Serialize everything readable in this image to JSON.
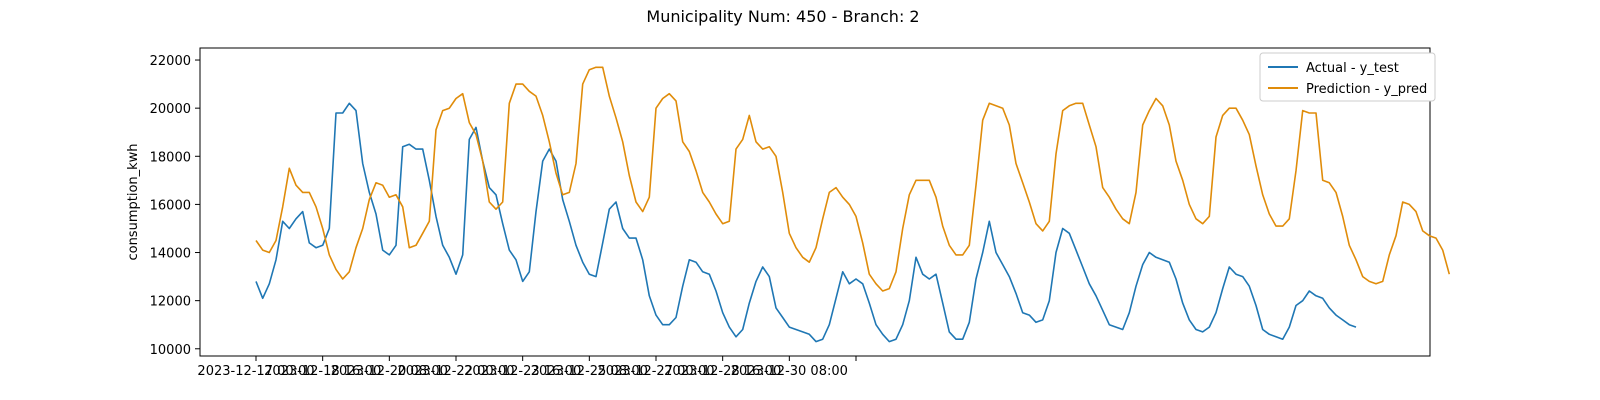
{
  "chart_data": {
    "type": "line",
    "title": "Municipality Num: 450 - Branch: 2",
    "xlabel": "",
    "ylabel": "consumption_kwh",
    "ylim": [
      9700,
      22500
    ],
    "grid": false,
    "legend_position": "top-right",
    "x_start": "2023-12-17 00:00",
    "x_step_hours": 4,
    "x_ticks": [
      "2023-12-17 00:00",
      "2023-12-18 16:00",
      "2023-12-20 08:00",
      "2023-12-22 00:00",
      "2023-12-23 16:00",
      "2023-12-25 08:00",
      "2023-12-27 00:00",
      "2023-12-28 16:00",
      "2023-12-30 08:00",
      ""
    ],
    "y_ticks": [
      10000,
      12000,
      14000,
      16000,
      18000,
      20000,
      22000
    ],
    "series": [
      {
        "name": "Actual - y_test",
        "color": "#1f77b4",
        "values": [
          12800,
          12100,
          12700,
          13700,
          15300,
          15000,
          15400,
          15700,
          14400,
          14200,
          14300,
          15000,
          19800,
          19800,
          20200,
          19900,
          17700,
          16500,
          15600,
          14100,
          13900,
          14300,
          18400,
          18500,
          18300,
          18300,
          17000,
          15500,
          14300,
          13800,
          13100,
          13900,
          18700,
          19200,
          17800,
          16700,
          16400,
          15200,
          14100,
          13700,
          12800,
          13200,
          15700,
          17800,
          18300,
          17800,
          16200,
          15300,
          14300,
          13600,
          13100,
          13000,
          14400,
          15800,
          16100,
          15000,
          14600,
          14600,
          13700,
          12200,
          11400,
          11000,
          11000,
          11300,
          12600,
          13700,
          13600,
          13200,
          13100,
          12400,
          11500,
          10900,
          10500,
          10800,
          11900,
          12800,
          13400,
          13000,
          11700,
          11300,
          10900,
          10800,
          10700,
          10600,
          10300,
          10400,
          11000,
          12100,
          13200,
          12700,
          12900,
          12700,
          11900,
          11000,
          10600,
          10300,
          10400,
          11000,
          12000,
          13800,
          13100,
          12900,
          13100,
          11900,
          10700,
          10400,
          10400,
          11100,
          12900,
          14000,
          15300,
          14000,
          13500,
          13000,
          12300,
          11500,
          11400,
          11100,
          11200,
          12000,
          14000,
          15000,
          14800,
          14100,
          13400,
          12700,
          12200,
          11600,
          11000,
          10900,
          10800,
          11500,
          12600,
          13500,
          14000,
          13800,
          13700,
          13600,
          12900,
          11900,
          11200,
          10800,
          10700,
          10900,
          11500,
          12500,
          13400,
          13100,
          13000,
          12600,
          11800,
          10800,
          10600,
          10500,
          10400,
          10900,
          11800,
          12000,
          12400,
          12200,
          12100,
          11700,
          11400,
          11200,
          11000,
          10900
        ]
      },
      {
        "name": "Prediction - y_pred",
        "color": "#e08c0a",
        "values": [
          14500,
          14100,
          14000,
          14500,
          15900,
          17500,
          16800,
          16500,
          16500,
          15900,
          15000,
          13900,
          13300,
          12900,
          13200,
          14200,
          15000,
          16200,
          16900,
          16800,
          16300,
          16400,
          15900,
          14200,
          14300,
          14800,
          15300,
          19100,
          19900,
          20000,
          20400,
          20600,
          19400,
          18900,
          17800,
          16100,
          15800,
          16100,
          20200,
          21000,
          21000,
          20700,
          20500,
          19700,
          18600,
          17300,
          16400,
          16500,
          17700,
          21000,
          21600,
          21700,
          21700,
          20500,
          19600,
          18600,
          17200,
          16100,
          15700,
          16300,
          20000,
          20400,
          20600,
          20300,
          18600,
          18200,
          17400,
          16500,
          16100,
          15600,
          15200,
          15300,
          18300,
          18700,
          19700,
          18600,
          18300,
          18400,
          18000,
          16500,
          14800,
          14200,
          13800,
          13600,
          14200,
          15400,
          16500,
          16700,
          16300,
          16000,
          15500,
          14400,
          13100,
          12700,
          12400,
          12500,
          13200,
          15000,
          16400,
          17000,
          17000,
          17000,
          16300,
          15100,
          14300,
          13900,
          13900,
          14300,
          16800,
          19500,
          20200,
          20100,
          20000,
          19300,
          17700,
          16900,
          16100,
          15200,
          14900,
          15300,
          18100,
          19900,
          20100,
          20200,
          20200,
          19300,
          18400,
          16700,
          16300,
          15800,
          15400,
          15200,
          16500,
          19300,
          19900,
          20400,
          20100,
          19300,
          17800,
          17000,
          16000,
          15400,
          15200,
          15500,
          18800,
          19700,
          20000,
          20000,
          19500,
          18900,
          17600,
          16400,
          15600,
          15100,
          15100,
          15400,
          17400,
          19900,
          19800,
          19800,
          17000,
          16900,
          16500,
          15500,
          14300,
          13700,
          13000,
          12800,
          12700,
          12800,
          13900,
          14700,
          16100,
          16000,
          15700,
          14900,
          14700,
          14600,
          14100,
          13100
        ]
      }
    ]
  }
}
